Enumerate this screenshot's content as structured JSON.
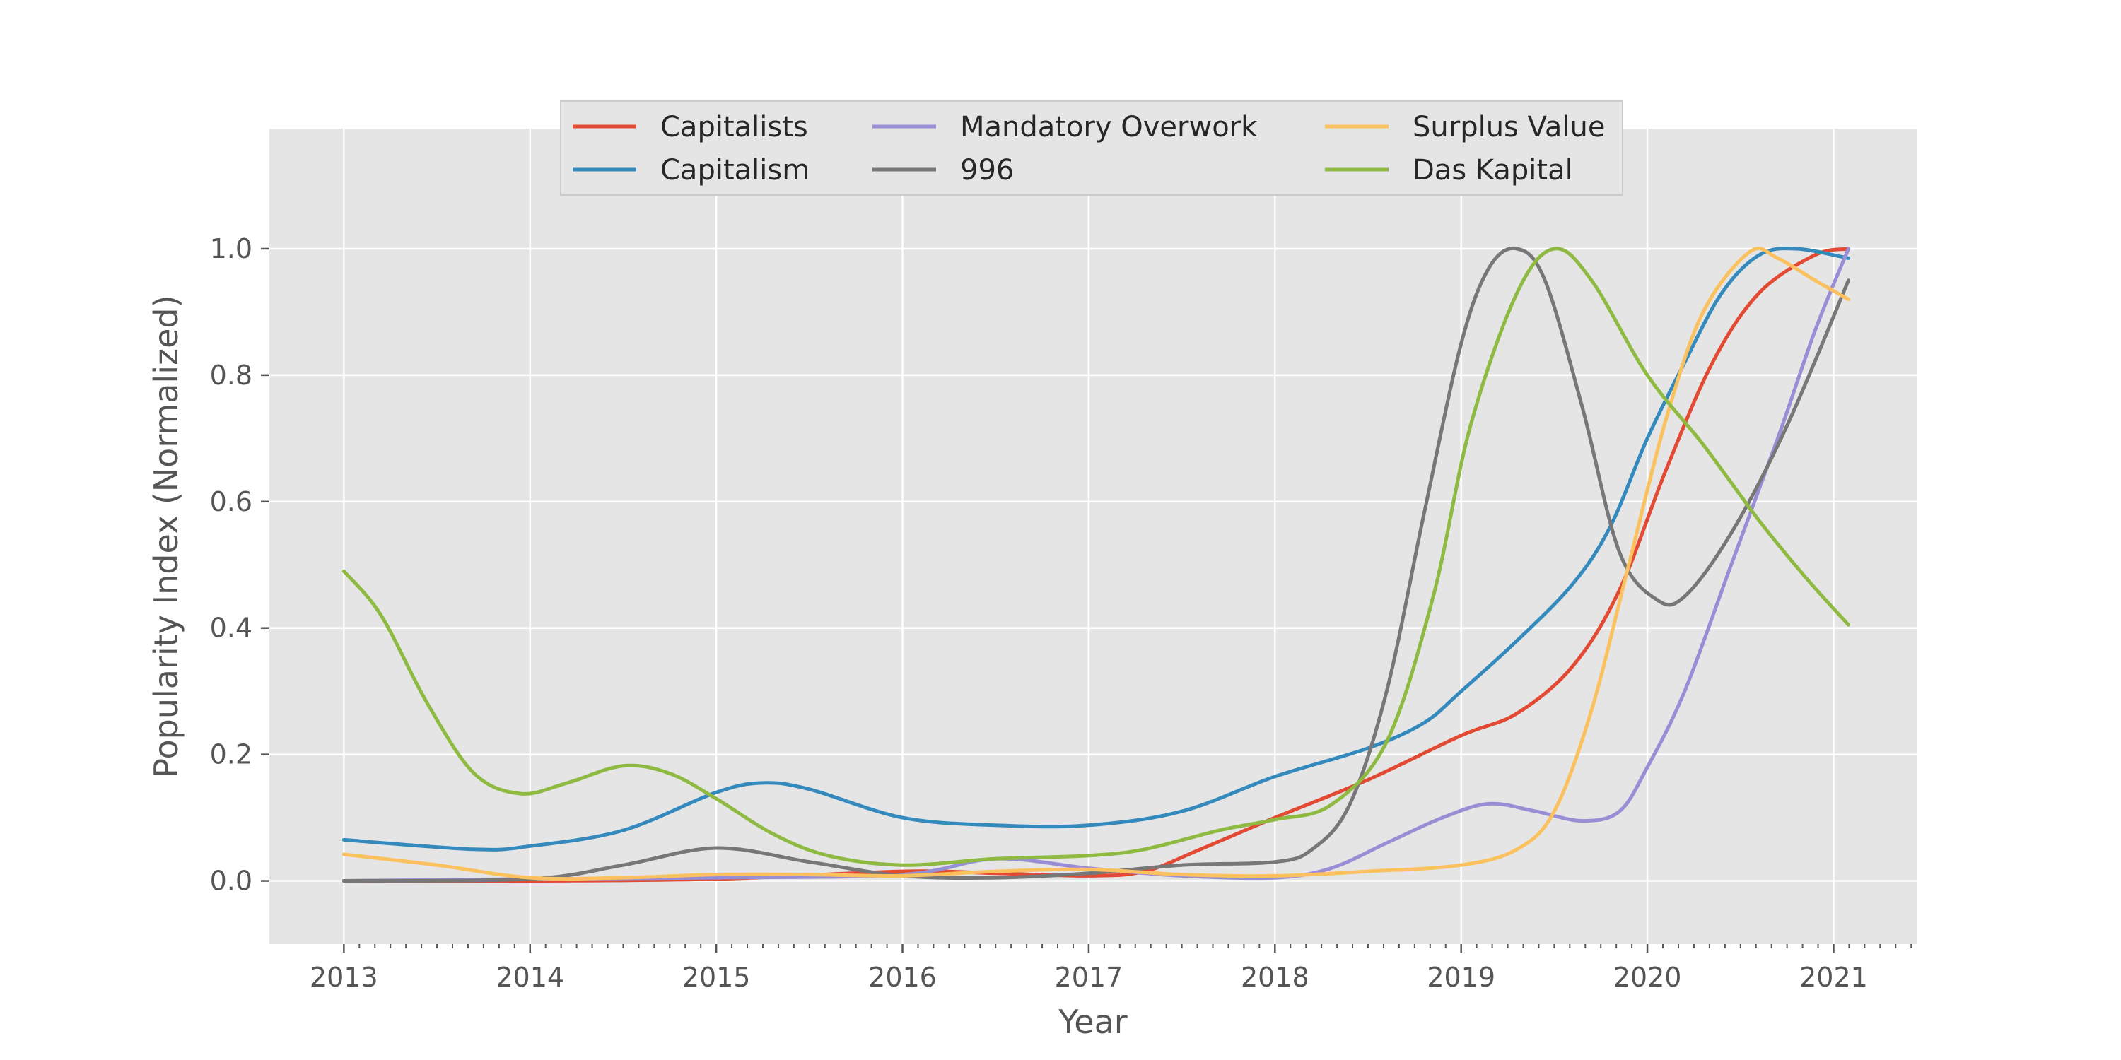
{
  "chart_data": {
    "type": "line",
    "xlabel": "Year",
    "ylabel": "Popularity Index (Normalized)",
    "xlim": [
      2012.6,
      2021.45
    ],
    "ylim": [
      -0.1,
      1.19
    ],
    "xticks": [
      "2013",
      "2014",
      "2015",
      "2016",
      "2017",
      "2018",
      "2019",
      "2020",
      "2021"
    ],
    "yticks": [
      "0.0",
      "0.2",
      "0.4",
      "0.6",
      "0.8",
      "1.0"
    ],
    "grid": true,
    "legend": {
      "placement": "top-center",
      "columns": 3
    },
    "series": [
      {
        "name": "Capitalists",
        "color": "#E24A33",
        "points": [
          [
            2013.0,
            0.0
          ],
          [
            2014.0,
            0.0
          ],
          [
            2015.0,
            0.003
          ],
          [
            2016.0,
            0.015
          ],
          [
            2016.5,
            0.012
          ],
          [
            2017.0,
            0.008
          ],
          [
            2017.3,
            0.015
          ],
          [
            2017.6,
            0.05
          ],
          [
            2018.0,
            0.1
          ],
          [
            2018.5,
            0.16
          ],
          [
            2019.0,
            0.23
          ],
          [
            2019.3,
            0.265
          ],
          [
            2019.6,
            0.34
          ],
          [
            2019.85,
            0.46
          ],
          [
            2020.1,
            0.65
          ],
          [
            2020.35,
            0.82
          ],
          [
            2020.6,
            0.93
          ],
          [
            2020.9,
            0.99
          ],
          [
            2021.08,
            1.0
          ]
        ]
      },
      {
        "name": "Capitalism",
        "color": "#348ABD",
        "points": [
          [
            2013.0,
            0.065
          ],
          [
            2013.7,
            0.05
          ],
          [
            2014.0,
            0.055
          ],
          [
            2014.5,
            0.08
          ],
          [
            2015.0,
            0.14
          ],
          [
            2015.25,
            0.155
          ],
          [
            2015.5,
            0.145
          ],
          [
            2016.0,
            0.1
          ],
          [
            2016.5,
            0.088
          ],
          [
            2017.0,
            0.088
          ],
          [
            2017.5,
            0.11
          ],
          [
            2018.0,
            0.165
          ],
          [
            2018.5,
            0.21
          ],
          [
            2018.8,
            0.25
          ],
          [
            2019.0,
            0.3
          ],
          [
            2019.3,
            0.38
          ],
          [
            2019.6,
            0.47
          ],
          [
            2019.8,
            0.56
          ],
          [
            2020.0,
            0.7
          ],
          [
            2020.2,
            0.82
          ],
          [
            2020.4,
            0.93
          ],
          [
            2020.6,
            0.99
          ],
          [
            2020.8,
            1.0
          ],
          [
            2021.08,
            0.985
          ]
        ]
      },
      {
        "name": "Mandatory Overwork",
        "color": "#988ED5",
        "points": [
          [
            2013.0,
            0.0
          ],
          [
            2014.0,
            0.003
          ],
          [
            2015.0,
            0.005
          ],
          [
            2016.0,
            0.01
          ],
          [
            2016.5,
            0.035
          ],
          [
            2017.0,
            0.02
          ],
          [
            2017.5,
            0.008
          ],
          [
            2018.0,
            0.005
          ],
          [
            2018.3,
            0.02
          ],
          [
            2018.6,
            0.06
          ],
          [
            2018.9,
            0.1
          ],
          [
            2019.15,
            0.122
          ],
          [
            2019.4,
            0.11
          ],
          [
            2019.65,
            0.095
          ],
          [
            2019.85,
            0.11
          ],
          [
            2020.0,
            0.18
          ],
          [
            2020.2,
            0.3
          ],
          [
            2020.45,
            0.5
          ],
          [
            2020.7,
            0.7
          ],
          [
            2020.9,
            0.87
          ],
          [
            2021.08,
            1.0
          ]
        ]
      },
      {
        "name": "996",
        "color": "#777777",
        "points": [
          [
            2013.0,
            0.0
          ],
          [
            2014.0,
            0.003
          ],
          [
            2014.5,
            0.025
          ],
          [
            2015.0,
            0.052
          ],
          [
            2015.5,
            0.03
          ],
          [
            2016.0,
            0.008
          ],
          [
            2016.5,
            0.005
          ],
          [
            2017.0,
            0.012
          ],
          [
            2017.5,
            0.025
          ],
          [
            2018.0,
            0.03
          ],
          [
            2018.2,
            0.05
          ],
          [
            2018.4,
            0.12
          ],
          [
            2018.6,
            0.3
          ],
          [
            2018.8,
            0.58
          ],
          [
            2019.0,
            0.85
          ],
          [
            2019.15,
            0.97
          ],
          [
            2019.3,
            1.0
          ],
          [
            2019.45,
            0.95
          ],
          [
            2019.65,
            0.75
          ],
          [
            2019.85,
            0.52
          ],
          [
            2020.05,
            0.445
          ],
          [
            2020.2,
            0.45
          ],
          [
            2020.45,
            0.55
          ],
          [
            2020.75,
            0.72
          ],
          [
            2021.08,
            0.95
          ]
        ]
      },
      {
        "name": "Surplus Value",
        "color": "#FBC15E",
        "points": [
          [
            2013.0,
            0.042
          ],
          [
            2013.5,
            0.025
          ],
          [
            2014.0,
            0.005
          ],
          [
            2014.5,
            0.005
          ],
          [
            2015.0,
            0.01
          ],
          [
            2015.5,
            0.01
          ],
          [
            2016.0,
            0.008
          ],
          [
            2016.5,
            0.015
          ],
          [
            2017.0,
            0.018
          ],
          [
            2017.5,
            0.01
          ],
          [
            2018.0,
            0.008
          ],
          [
            2018.5,
            0.015
          ],
          [
            2019.0,
            0.025
          ],
          [
            2019.3,
            0.05
          ],
          [
            2019.5,
            0.11
          ],
          [
            2019.7,
            0.27
          ],
          [
            2019.9,
            0.5
          ],
          [
            2020.1,
            0.73
          ],
          [
            2020.3,
            0.9
          ],
          [
            2020.55,
            0.995
          ],
          [
            2020.7,
            0.985
          ],
          [
            2020.9,
            0.95
          ],
          [
            2021.08,
            0.92
          ]
        ]
      },
      {
        "name": "Das Kapital",
        "color": "#8EBA42",
        "points": [
          [
            2013.0,
            0.49
          ],
          [
            2013.2,
            0.42
          ],
          [
            2013.45,
            0.28
          ],
          [
            2013.7,
            0.17
          ],
          [
            2013.95,
            0.138
          ],
          [
            2014.2,
            0.155
          ],
          [
            2014.5,
            0.182
          ],
          [
            2014.75,
            0.17
          ],
          [
            2015.0,
            0.13
          ],
          [
            2015.3,
            0.075
          ],
          [
            2015.6,
            0.04
          ],
          [
            2016.0,
            0.025
          ],
          [
            2016.5,
            0.035
          ],
          [
            2017.0,
            0.04
          ],
          [
            2017.3,
            0.05
          ],
          [
            2017.7,
            0.08
          ],
          [
            2018.0,
            0.097
          ],
          [
            2018.3,
            0.12
          ],
          [
            2018.6,
            0.22
          ],
          [
            2018.85,
            0.45
          ],
          [
            2019.05,
            0.72
          ],
          [
            2019.3,
            0.93
          ],
          [
            2019.5,
            1.0
          ],
          [
            2019.7,
            0.95
          ],
          [
            2020.0,
            0.8
          ],
          [
            2020.3,
            0.69
          ],
          [
            2020.6,
            0.57
          ],
          [
            2020.85,
            0.48
          ],
          [
            2021.08,
            0.405
          ]
        ]
      }
    ]
  }
}
